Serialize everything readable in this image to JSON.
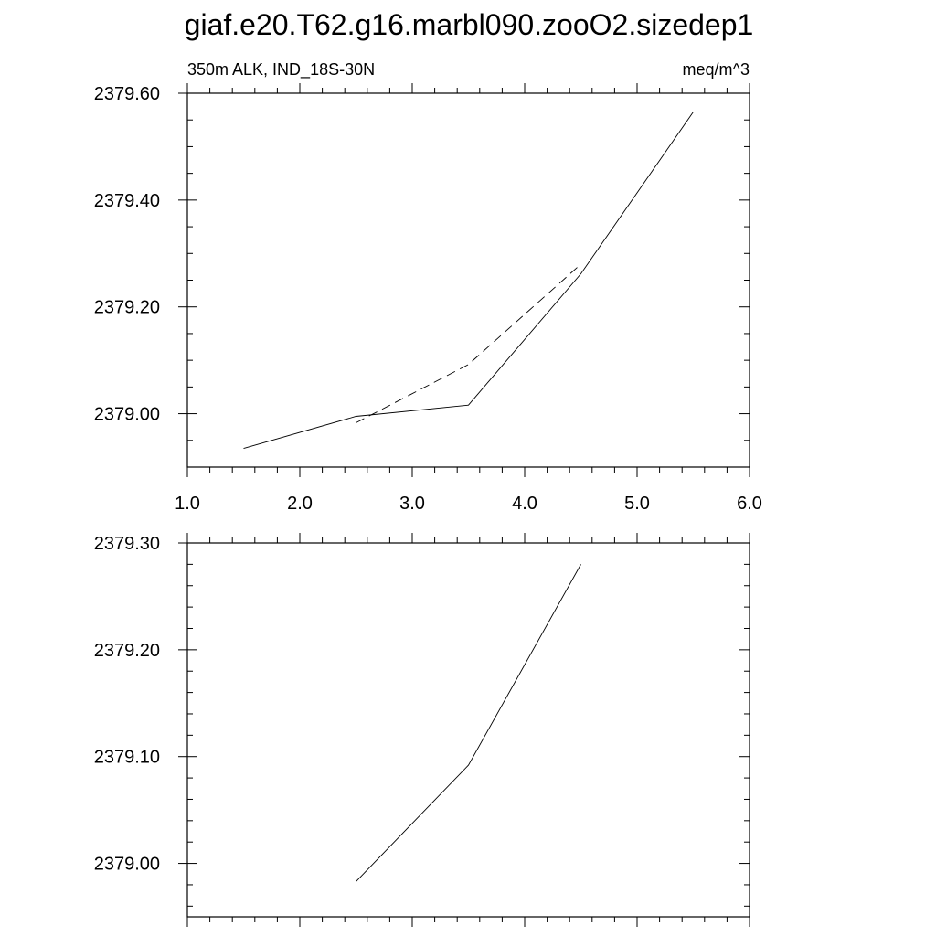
{
  "title": "giaf.e20.T62.g16.marbl090.zooO2.sizedep1",
  "chart_data": [
    {
      "type": "line",
      "left_label": "350m ALK, IND_18S-30N",
      "right_label": "meq/m^3",
      "xlim": [
        1.0,
        6.0
      ],
      "ylim": [
        2378.9,
        2379.6
      ],
      "x_ticks": [
        1.0,
        2.0,
        3.0,
        4.0,
        5.0,
        6.0
      ],
      "x_tick_labels": [
        "1.0",
        "2.0",
        "3.0",
        "4.0",
        "5.0",
        "6.0"
      ],
      "y_ticks": [
        2379.0,
        2379.2,
        2379.4,
        2379.6
      ],
      "y_tick_labels": [
        "2379.00",
        "2379.20",
        "2379.40",
        "2379.60"
      ],
      "y_minor_step": 0.05,
      "x_minor_step": 0.2,
      "grid": false,
      "series": [
        {
          "style": "solid",
          "x": [
            1.5,
            2.5,
            3.5,
            4.5,
            5.5
          ],
          "y": [
            2378.935,
            2378.995,
            2379.016,
            2379.262,
            2379.565
          ]
        },
        {
          "style": "dashed",
          "x": [
            2.5,
            3.5,
            4.5
          ],
          "y": [
            2378.983,
            2379.092,
            2379.28
          ]
        }
      ]
    },
    {
      "type": "line",
      "xlim": [
        1.0,
        6.0
      ],
      "ylim": [
        2378.95,
        2379.3
      ],
      "x_ticks": [
        1.0,
        2.0,
        3.0,
        4.0,
        5.0,
        6.0
      ],
      "x_tick_labels": [],
      "y_ticks": [
        2379.0,
        2379.1,
        2379.2,
        2379.3
      ],
      "y_tick_labels": [
        "2379.00",
        "2379.10",
        "2379.20",
        "2379.30"
      ],
      "y_minor_step": 0.02,
      "x_minor_step": 0.2,
      "grid": false,
      "series": [
        {
          "style": "solid",
          "x": [
            2.5,
            3.5,
            4.5
          ],
          "y": [
            2378.983,
            2379.092,
            2379.28
          ]
        }
      ]
    }
  ]
}
